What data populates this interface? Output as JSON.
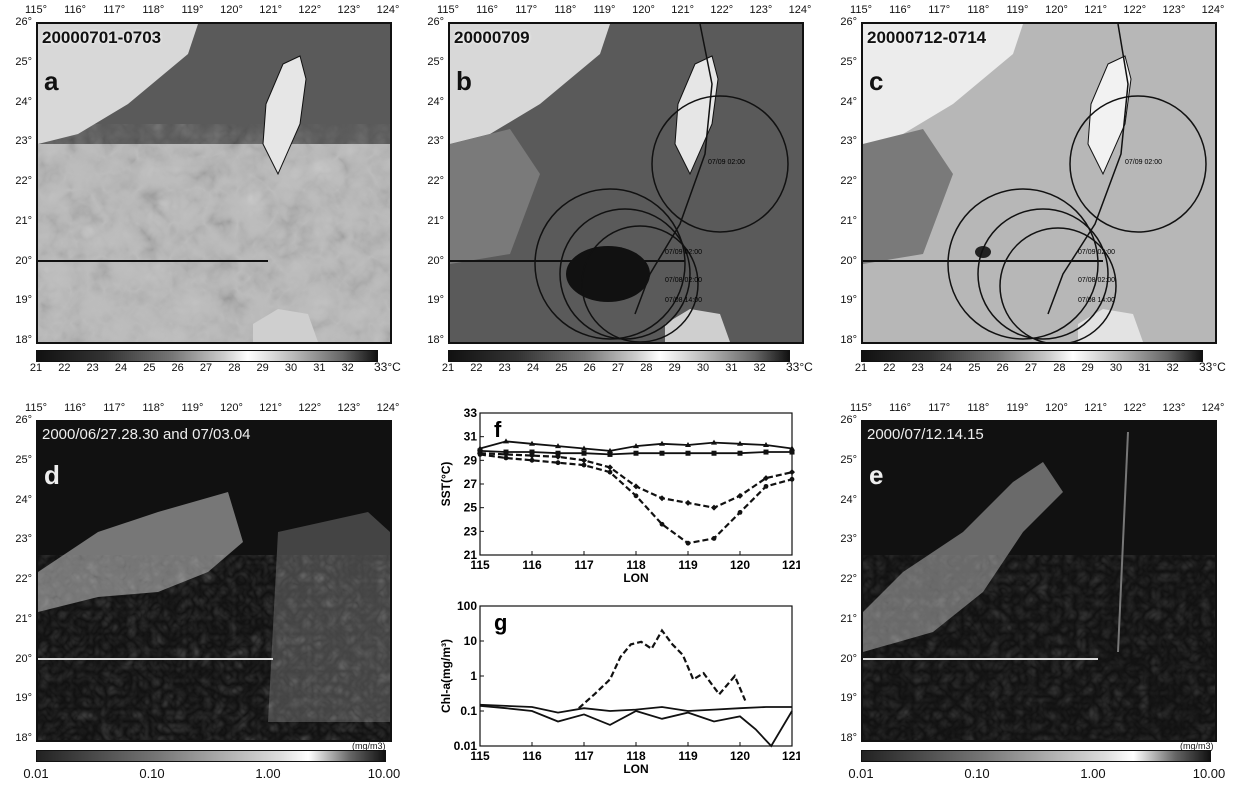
{
  "lon_ticks": [
    "115°",
    "116°",
    "117°",
    "118°",
    "119°",
    "120°",
    "121°",
    "122°",
    "123°",
    "124°"
  ],
  "lat_ticks": [
    "26°",
    "25°",
    "24°",
    "23°",
    "22°",
    "21°",
    "20°",
    "19°",
    "18°"
  ],
  "sst_colorbar": {
    "ticks": [
      "21",
      "22",
      "23",
      "24",
      "25",
      "26",
      "27",
      "28",
      "29",
      "30",
      "31",
      "32"
    ],
    "unit": "33°C"
  },
  "chl_colorbar": {
    "ticks": [
      "0.01",
      "0.10",
      "1.00",
      "10.00"
    ],
    "unit": "(mg/m3)"
  },
  "panels": {
    "a": {
      "letter": "a",
      "date": "20000701-0703"
    },
    "b": {
      "letter": "b",
      "date": "20000709",
      "track_labels": [
        "07/09 02:00",
        "07/09 02:00",
        "07/08 02:00",
        "07/08 14:00"
      ]
    },
    "c": {
      "letter": "c",
      "date": "20000712-0714",
      "track_labels": [
        "07/09 02:00",
        "07/09 02:00",
        "07/08 02:00",
        "07/08 14:00"
      ]
    },
    "d": {
      "letter": "d",
      "date": "2000/06/27.28.30 and 07/03.04"
    },
    "e": {
      "letter": "e",
      "date": "2000/07/12.14.15"
    }
  },
  "chart_data": [
    {
      "type": "line",
      "panel_letter": "f",
      "ylabel": "SST(°C)",
      "xlabel": "LON",
      "xlim": [
        115,
        121
      ],
      "ylim": [
        21,
        33
      ],
      "x_ticks": [
        "115",
        "116",
        "117",
        "118",
        "119",
        "120",
        "121"
      ],
      "y_ticks": [
        "21",
        "23",
        "25",
        "27",
        "29",
        "31",
        "33"
      ],
      "series": [
        {
          "marker": "triangle",
          "x": [
            115,
            115.5,
            116,
            116.5,
            117,
            117.5,
            118,
            118.5,
            119,
            119.5,
            120,
            120.5,
            121
          ],
          "values": [
            30.0,
            30.6,
            30.4,
            30.2,
            30.0,
            29.8,
            30.2,
            30.4,
            30.3,
            30.5,
            30.4,
            30.3,
            30.0
          ]
        },
        {
          "marker": "square",
          "x": [
            115,
            115.5,
            116,
            116.5,
            117,
            117.5,
            118,
            118.5,
            119,
            119.5,
            120,
            120.5,
            121
          ],
          "values": [
            29.8,
            29.7,
            29.7,
            29.6,
            29.6,
            29.5,
            29.6,
            29.6,
            29.6,
            29.6,
            29.6,
            29.7,
            29.7
          ]
        },
        {
          "marker": "diamond",
          "dash": true,
          "x": [
            115,
            115.5,
            116,
            116.5,
            117,
            117.5,
            118,
            118.5,
            119,
            119.5,
            120,
            120.5,
            121
          ],
          "values": [
            29.6,
            29.5,
            29.4,
            29.3,
            29.0,
            28.4,
            26.8,
            25.8,
            25.4,
            25.0,
            26.0,
            27.5,
            28.0
          ]
        },
        {
          "marker": "circle",
          "dash": true,
          "x": [
            115,
            115.5,
            116,
            116.5,
            117,
            117.5,
            118,
            118.5,
            119,
            119.5,
            120,
            120.5,
            121
          ],
          "values": [
            29.5,
            29.2,
            29.0,
            28.8,
            28.6,
            28.0,
            26.0,
            23.6,
            22.0,
            22.4,
            24.6,
            26.8,
            27.4
          ]
        }
      ]
    },
    {
      "type": "line",
      "panel_letter": "g",
      "ylabel": "Chl-a(mg/m³)",
      "xlabel": "LON",
      "xlim": [
        115,
        121
      ],
      "ylim": [
        0.01,
        100
      ],
      "yscale": "log",
      "x_ticks": [
        "115",
        "116",
        "117",
        "118",
        "119",
        "120",
        "121"
      ],
      "y_ticks": [
        "0.01",
        "0.1",
        "1",
        "10",
        "100"
      ],
      "series": [
        {
          "dash": true,
          "x": [
            116.9,
            117.2,
            117.5,
            117.7,
            117.9,
            118.1,
            118.3,
            118.5,
            118.7,
            118.9,
            119.1,
            119.3,
            119.6,
            119.9,
            120.1
          ],
          "values": [
            0.12,
            0.3,
            0.8,
            3.5,
            8.0,
            9.5,
            6.0,
            20.0,
            8.0,
            4.0,
            0.8,
            1.2,
            0.3,
            1.0,
            0.2
          ]
        },
        {
          "x": [
            115,
            115.5,
            116,
            116.5,
            117,
            117.5,
            118,
            118.5,
            119,
            119.5,
            120,
            120.5,
            121
          ],
          "values": [
            0.15,
            0.14,
            0.13,
            0.09,
            0.12,
            0.1,
            0.11,
            0.13,
            0.1,
            0.11,
            0.12,
            0.13,
            0.13
          ]
        },
        {
          "x": [
            115,
            115.5,
            116,
            116.5,
            117,
            117.5,
            118,
            118.5,
            119,
            119.5,
            120,
            120.3,
            120.6,
            121
          ],
          "values": [
            0.14,
            0.12,
            0.1,
            0.05,
            0.08,
            0.04,
            0.1,
            0.06,
            0.09,
            0.05,
            0.07,
            0.03,
            0.01,
            0.1
          ]
        }
      ]
    }
  ]
}
